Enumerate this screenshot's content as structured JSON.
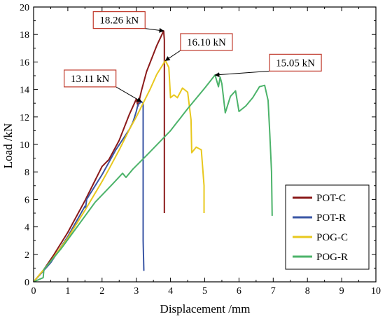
{
  "chart_data": {
    "type": "line",
    "title": "",
    "xlabel": "Displacement /mm",
    "ylabel": "Load /kN",
    "xlim": [
      0,
      10
    ],
    "ylim": [
      0,
      20
    ],
    "xticks": [
      0,
      1,
      2,
      3,
      4,
      5,
      6,
      7,
      8,
      9,
      10
    ],
    "yticks": [
      0,
      2,
      4,
      6,
      8,
      10,
      12,
      14,
      16,
      18,
      20
    ],
    "grid": false,
    "legend_position": "bottom-right",
    "series": [
      {
        "name": "POT-C",
        "color": "#8B1A1A",
        "points": [
          [
            0,
            0
          ],
          [
            0.3,
            0.9
          ],
          [
            0.6,
            2.0
          ],
          [
            1.0,
            3.6
          ],
          [
            1.5,
            5.9
          ],
          [
            1.8,
            7.4
          ],
          [
            2.0,
            8.4
          ],
          [
            2.2,
            8.9
          ],
          [
            2.5,
            10.3
          ],
          [
            2.8,
            12.2
          ],
          [
            3.0,
            13.3
          ],
          [
            3.05,
            12.8
          ],
          [
            3.15,
            13.9
          ],
          [
            3.3,
            15.3
          ],
          [
            3.6,
            17.2
          ],
          [
            3.8,
            18.26
          ],
          [
            3.82,
            17.6
          ],
          [
            3.82,
            5.0
          ]
        ]
      },
      {
        "name": "POT-R",
        "color": "#3A56A5",
        "points": [
          [
            0,
            0
          ],
          [
            0.5,
            1.4
          ],
          [
            1.0,
            3.3
          ],
          [
            1.5,
            5.5
          ],
          [
            1.52,
            5.4
          ],
          [
            1.55,
            6.0
          ],
          [
            1.8,
            7.0
          ],
          [
            2.0,
            7.8
          ],
          [
            2.4,
            9.6
          ],
          [
            2.8,
            11.1
          ],
          [
            2.9,
            11.6
          ],
          [
            2.95,
            12.0
          ],
          [
            3.0,
            12.4
          ],
          [
            3.05,
            12.9
          ],
          [
            3.15,
            13.11
          ],
          [
            3.2,
            13.0
          ],
          [
            3.2,
            3.0
          ],
          [
            3.22,
            0.8
          ]
        ]
      },
      {
        "name": "POG-C",
        "color": "#E8C81E",
        "points": [
          [
            0,
            0
          ],
          [
            0.5,
            1.5
          ],
          [
            1.0,
            3.2
          ],
          [
            1.5,
            5.2
          ],
          [
            2.0,
            7.3
          ],
          [
            2.2,
            8.2
          ],
          [
            2.5,
            9.6
          ],
          [
            2.8,
            11.1
          ],
          [
            3.0,
            12.0
          ],
          [
            3.2,
            13.0
          ],
          [
            3.4,
            14.0
          ],
          [
            3.6,
            15.1
          ],
          [
            3.85,
            16.1
          ],
          [
            3.95,
            15.6
          ],
          [
            4.0,
            13.4
          ],
          [
            4.1,
            13.6
          ],
          [
            4.2,
            13.4
          ],
          [
            4.35,
            14.1
          ],
          [
            4.5,
            13.8
          ],
          [
            4.6,
            11.8
          ],
          [
            4.62,
            9.4
          ],
          [
            4.75,
            9.8
          ],
          [
            4.9,
            9.6
          ],
          [
            4.98,
            7.0
          ],
          [
            4.98,
            5.0
          ]
        ]
      },
      {
        "name": "POG-R",
        "color": "#4CB36A",
        "points": [
          [
            0,
            0
          ],
          [
            0.28,
            0.3
          ],
          [
            0.3,
            0.9
          ],
          [
            0.8,
            2.4
          ],
          [
            1.3,
            4.1
          ],
          [
            1.8,
            5.8
          ],
          [
            2.3,
            7.1
          ],
          [
            2.6,
            7.9
          ],
          [
            2.7,
            7.6
          ],
          [
            2.9,
            8.2
          ],
          [
            3.3,
            9.2
          ],
          [
            4.0,
            11.0
          ],
          [
            4.5,
            12.6
          ],
          [
            5.0,
            14.1
          ],
          [
            5.3,
            15.05
          ],
          [
            5.4,
            14.2
          ],
          [
            5.45,
            14.9
          ],
          [
            5.5,
            14.4
          ],
          [
            5.6,
            12.3
          ],
          [
            5.75,
            13.5
          ],
          [
            5.9,
            13.9
          ],
          [
            6.0,
            12.4
          ],
          [
            6.2,
            12.8
          ],
          [
            6.4,
            13.4
          ],
          [
            6.6,
            14.2
          ],
          [
            6.75,
            14.3
          ],
          [
            6.85,
            13.2
          ],
          [
            6.9,
            10.8
          ],
          [
            6.95,
            8.0
          ],
          [
            6.97,
            4.8
          ]
        ]
      }
    ],
    "annotations": [
      {
        "text": "18.26 kN",
        "point": [
          3.8,
          18.26
        ],
        "label_at": [
          2.5,
          19.05
        ]
      },
      {
        "text": "16.10 kN",
        "point": [
          3.85,
          16.1
        ],
        "label_at": [
          5.05,
          17.45
        ]
      },
      {
        "text": "13.11 kN",
        "point": [
          3.15,
          13.11
        ],
        "label_at": [
          1.65,
          14.8
        ]
      },
      {
        "text": "15.05 kN",
        "point": [
          5.3,
          15.05
        ],
        "label_at": [
          7.65,
          15.95
        ]
      }
    ]
  }
}
